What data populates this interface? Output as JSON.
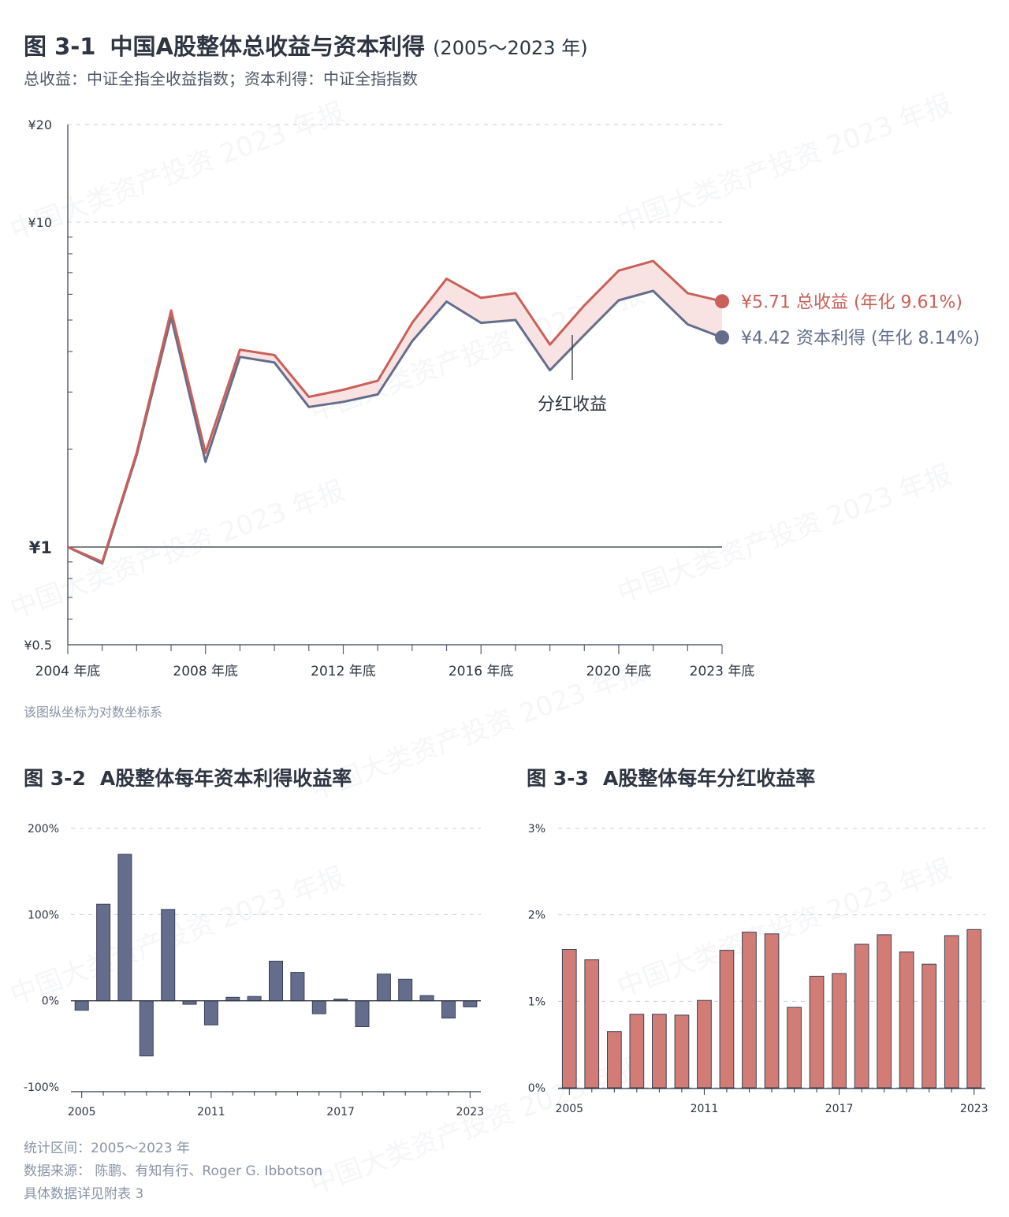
{
  "fig1": {
    "number": "图 3-1",
    "title": "中国A股整体总收益与资本利得",
    "range": "(2005～2023 年)",
    "subtitle": "总收益：中证全指全收益指数；资本利得：中证全指指数",
    "note": "该图纵坐标为对数坐标系",
    "dividend_annotation": "分红收益"
  },
  "fig2": {
    "number": "图 3-2",
    "title": "A股整体每年资本利得收益率"
  },
  "fig3": {
    "number": "图 3-3",
    "title": "A股整体每年分红收益率"
  },
  "footer": {
    "line1": "统计区间：2005～2023 年",
    "line2": "数据来源： 陈鹏、有知有行、Roger G. Ibbotson",
    "line3": "具体数据详见附表 3"
  },
  "watermark": "中国大类资产投资 2023 年报",
  "colors": {
    "total": "#c9605a",
    "capital": "#646e8c",
    "fill": "#f9e3e2",
    "bar_capital": "#646e8c",
    "bar_dividend": "#d27c76"
  },
  "chart_data": [
    {
      "type": "line",
      "scale": "log",
      "ylim": [
        0.5,
        20
      ],
      "ytick_labels": [
        "¥0.5",
        "¥1",
        "¥10",
        "¥20"
      ],
      "x": [
        2004,
        2005,
        2006,
        2007,
        2008,
        2009,
        2010,
        2011,
        2012,
        2013,
        2014,
        2015,
        2016,
        2017,
        2018,
        2019,
        2020,
        2021,
        2022,
        2023
      ],
      "xtick_labels": [
        "2004 年底",
        "2008 年底",
        "2012 年底",
        "2016 年底",
        "2020 年底",
        "2023 年底"
      ],
      "xtick_years": [
        2004,
        2008,
        2012,
        2016,
        2020,
        2023
      ],
      "series": [
        {
          "name": "总收益",
          "end_label": "¥5.71",
          "annual_label": "(年化 9.61%)",
          "values": [
            1.0,
            0.9,
            1.95,
            5.35,
            1.95,
            4.05,
            3.9,
            2.9,
            3.05,
            3.25,
            4.9,
            6.7,
            5.85,
            6.05,
            4.2,
            5.55,
            7.1,
            7.6,
            6.05,
            5.71
          ]
        },
        {
          "name": "资本利得",
          "end_label": "¥4.42",
          "annual_label": "(年化 8.14%)",
          "values": [
            1.0,
            0.89,
            1.92,
            5.1,
            1.83,
            3.85,
            3.7,
            2.7,
            2.8,
            2.95,
            4.3,
            5.7,
            4.9,
            5.0,
            3.5,
            4.5,
            5.75,
            6.15,
            4.85,
            4.42
          ]
        }
      ]
    },
    {
      "type": "bar",
      "title": "A股整体每年资本利得收益率",
      "categories": [
        2005,
        2006,
        2007,
        2008,
        2009,
        2010,
        2011,
        2012,
        2013,
        2014,
        2015,
        2016,
        2017,
        2018,
        2019,
        2020,
        2021,
        2022,
        2023
      ],
      "values": [
        -11,
        112,
        170,
        -64,
        106,
        -4,
        -28,
        4,
        5,
        46,
        33,
        -15,
        2,
        -30,
        31,
        25,
        6,
        -20,
        -7
      ],
      "ylim": [
        -100,
        200
      ],
      "ytick_labels": [
        "200%",
        "100%",
        "0%",
        "-100%"
      ],
      "yticks": [
        200,
        100,
        0,
        -100
      ],
      "xtick_labels": [
        "2005",
        "2011",
        "2017",
        "2023"
      ],
      "xtick_years": [
        2005,
        2011,
        2017,
        2023
      ]
    },
    {
      "type": "bar",
      "title": "A股整体每年分红收益率",
      "categories": [
        2005,
        2006,
        2007,
        2008,
        2009,
        2010,
        2011,
        2012,
        2013,
        2014,
        2015,
        2016,
        2017,
        2018,
        2019,
        2020,
        2021,
        2022,
        2023
      ],
      "values": [
        1.6,
        1.48,
        0.65,
        0.85,
        0.85,
        0.84,
        1.01,
        1.59,
        1.8,
        1.78,
        0.93,
        1.29,
        1.32,
        1.66,
        1.77,
        1.57,
        1.43,
        1.76,
        1.83
      ],
      "ylim": [
        0,
        3
      ],
      "ytick_labels": [
        "3%",
        "2%",
        "1%",
        "0%"
      ],
      "yticks": [
        3,
        2,
        1,
        0
      ],
      "xtick_labels": [
        "2005",
        "2011",
        "2017",
        "2023"
      ],
      "xtick_years": [
        2005,
        2011,
        2017,
        2023
      ]
    }
  ]
}
